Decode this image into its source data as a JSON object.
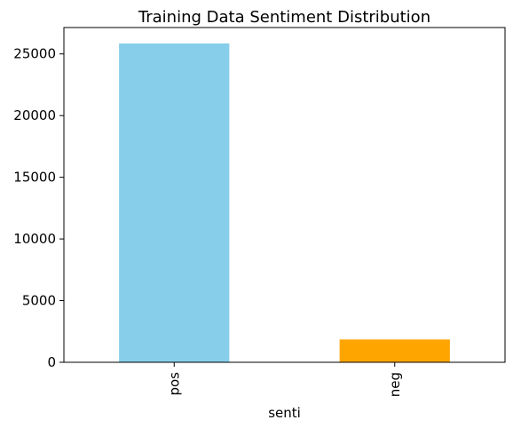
{
  "chart_data": {
    "type": "bar",
    "title": "Training Data Sentiment Distribution",
    "xlabel": "senti",
    "ylabel": "",
    "categories": [
      "pos",
      "neg"
    ],
    "values": [
      25850,
      1850
    ],
    "colors": [
      "#87CEEB",
      "#FFA500"
    ],
    "ylim": [
      0,
      27140
    ],
    "yticks": [
      0,
      5000,
      10000,
      15000,
      20000,
      25000
    ],
    "ytick_labels": [
      "0",
      "5000",
      "10000",
      "15000",
      "20000",
      "25000"
    ],
    "xtick_rotation": "vertical",
    "grid": false,
    "legend": "none"
  }
}
